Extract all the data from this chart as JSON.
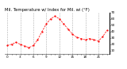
{
  "title": "Mil. Temperature w/ Index for Mil. wi (°F)",
  "background_color": "#ffffff",
  "grid_color": "#999999",
  "line_color": "#ff0000",
  "y_values": [
    18,
    20,
    23,
    20,
    17,
    15,
    18,
    27,
    40,
    52,
    60,
    64,
    60,
    52,
    44,
    36,
    31,
    29,
    27,
    29,
    27,
    25,
    32,
    42
  ],
  "ylim": [
    5,
    70
  ],
  "yticks": [
    10,
    20,
    30,
    40,
    50,
    60,
    70
  ],
  "ytick_labels": [
    "10",
    "20",
    "30",
    "40",
    "50",
    "60",
    "70"
  ],
  "num_points": 24,
  "title_fontsize": 3.8,
  "tick_fontsize": 3.0,
  "grid_every": 3
}
